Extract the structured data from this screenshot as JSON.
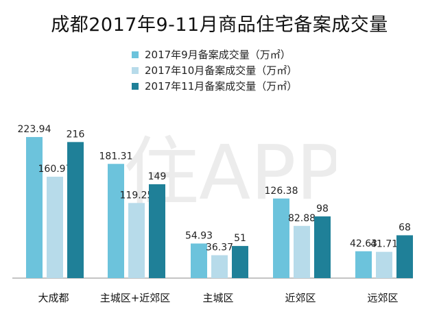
{
  "title": "成都2017年9-11月商品住宅备案成交量",
  "legend": [
    {
      "label": "2017年9月备案成交量（万㎡）",
      "color": "#6cc3dc"
    },
    {
      "label": "2017年10月备案成交量（万㎡）",
      "color": "#b7dbea"
    },
    {
      "label": "2017年11月备案成交量（万㎡）",
      "color": "#1f8098"
    }
  ],
  "watermark_text": "住APP",
  "chart_data": {
    "type": "bar",
    "title": "成都2017年9-11月商品住宅备案成交量",
    "categories": [
      "大成都",
      "主城区+近郊区",
      "主城区",
      "近郊区",
      "远郊区"
    ],
    "series": [
      {
        "name": "2017年9月备案成交量（万㎡）",
        "color": "#6cc3dc",
        "values": [
          223.94,
          181.31,
          54.93,
          126.38,
          42.63
        ],
        "labels": [
          "223.94",
          "181.31",
          "54.93",
          "126.38",
          "42.63"
        ]
      },
      {
        "name": "2017年10月备案成交量（万㎡）",
        "color": "#b7dbea",
        "values": [
          160.97,
          119.25,
          36.37,
          82.88,
          41.71
        ],
        "labels": [
          "160.97",
          "119.25",
          "36.37",
          "82.88",
          "41.71"
        ]
      },
      {
        "name": "2017年11月备案成交量（万㎡）",
        "color": "#1f8098",
        "values": [
          216,
          149,
          51,
          98,
          68
        ],
        "labels": [
          "216",
          "149",
          "51",
          "98",
          "68"
        ]
      }
    ],
    "ylim": [
      0,
      230
    ],
    "grid": false,
    "legend_position": "top-center"
  }
}
